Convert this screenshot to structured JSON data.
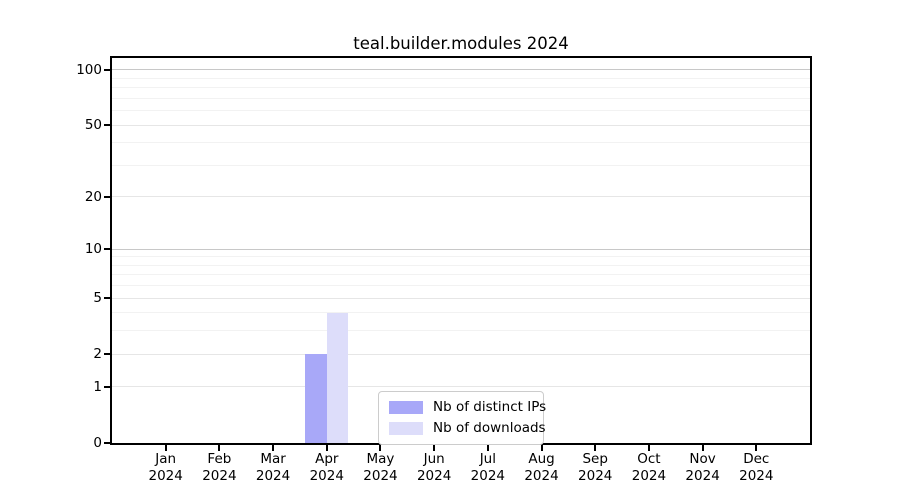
{
  "title": "teal.builder.modules 2024",
  "colors": {
    "background": "#ffffff",
    "spine": "#000000",
    "grid_major": "#e6e6e6",
    "grid_minor": "#f2f2f2",
    "grid_emphasis": "#c8c8c8",
    "text": "#000000",
    "legend_border": "#cccccc",
    "ips_bar": "#a8a8f8",
    "downloads_bar": "#ddddfa"
  },
  "chart_data": {
    "type": "bar",
    "title": "teal.builder.modules 2024",
    "categories": [
      "Jan 2024",
      "Feb 2024",
      "Mar 2024",
      "Apr 2024",
      "May 2024",
      "Jun 2024",
      "Jul 2024",
      "Aug 2024",
      "Sep 2024",
      "Oct 2024",
      "Nov 2024",
      "Dec 2024"
    ],
    "series": [
      {
        "name": "Nb of distinct IPs",
        "color": "#a8a8f8",
        "values": [
          0,
          0,
          0,
          2,
          0,
          0,
          0,
          0,
          0,
          0,
          0,
          0
        ]
      },
      {
        "name": "Nb of downloads",
        "color": "#ddddfa",
        "values": [
          0,
          0,
          0,
          4,
          0,
          0,
          0,
          0,
          0,
          0,
          0,
          0
        ]
      }
    ],
    "xlabel": "",
    "ylabel": "",
    "yscale": "log1p",
    "ylim": [
      0,
      116
    ],
    "y_major_ticks": [
      0,
      1,
      2,
      5,
      10,
      20,
      50,
      100
    ],
    "y_emphasis_ticks": [
      10,
      100
    ],
    "y_minor_ticks": [
      3,
      4,
      6,
      7,
      8,
      9,
      30,
      40,
      60,
      70,
      80,
      90
    ],
    "grid": "on",
    "legend_position": "lower center"
  },
  "legend": {
    "items": [
      {
        "label": "Nb of distinct IPs"
      },
      {
        "label": "Nb of downloads"
      }
    ]
  }
}
